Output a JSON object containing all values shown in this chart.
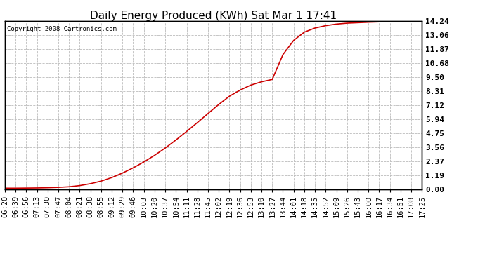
{
  "title": "Daily Energy Produced (KWh) Sat Mar 1 17:41",
  "copyright_text": "Copyright 2008 Cartronics.com",
  "line_color": "#cc0000",
  "background_color": "#ffffff",
  "plot_bg_color": "#ffffff",
  "grid_color": "#bbbbbb",
  "yticks": [
    0.0,
    1.19,
    2.37,
    3.56,
    4.75,
    5.94,
    7.12,
    8.31,
    9.5,
    10.68,
    11.87,
    13.06,
    14.24
  ],
  "ylim": [
    0.0,
    14.24
  ],
  "x_labels": [
    "06:20",
    "06:39",
    "06:56",
    "07:13",
    "07:30",
    "07:47",
    "08:04",
    "08:21",
    "08:38",
    "08:55",
    "09:12",
    "09:29",
    "09:46",
    "10:03",
    "10:20",
    "10:37",
    "10:54",
    "11:11",
    "11:28",
    "11:45",
    "12:02",
    "12:19",
    "12:36",
    "12:53",
    "13:10",
    "13:27",
    "13:44",
    "14:01",
    "14:18",
    "14:35",
    "14:52",
    "15:09",
    "15:26",
    "15:43",
    "16:00",
    "16:17",
    "16:34",
    "16:51",
    "17:08",
    "17:25"
  ],
  "y_values": [
    0.1,
    0.1,
    0.11,
    0.12,
    0.14,
    0.17,
    0.22,
    0.32,
    0.48,
    0.7,
    1.0,
    1.38,
    1.82,
    2.32,
    2.88,
    3.5,
    4.18,
    4.9,
    5.65,
    6.42,
    7.18,
    7.88,
    8.4,
    8.82,
    9.1,
    9.3,
    11.4,
    12.6,
    13.3,
    13.65,
    13.85,
    13.98,
    14.06,
    14.1,
    14.14,
    14.17,
    14.19,
    14.21,
    14.22,
    14.24
  ],
  "title_fontsize": 11,
  "tick_fontsize": 7.5,
  "ytick_fontsize": 8
}
